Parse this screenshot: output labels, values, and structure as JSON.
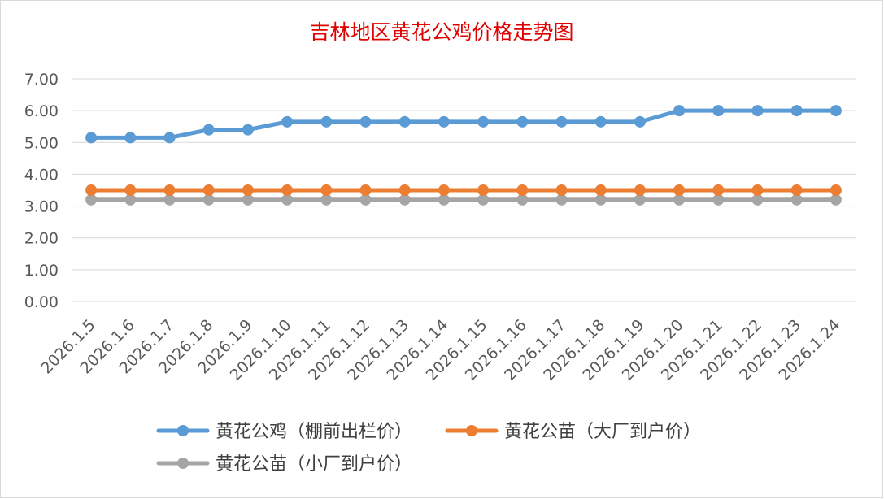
{
  "chart_data": {
    "type": "line",
    "title": "吉林地区黄花公鸡价格走势图",
    "xlabel": "",
    "ylabel": "",
    "x": [
      "2026.1.5",
      "2026.1.6",
      "2026.1.7",
      "2026.1.8",
      "2026.1.9",
      "2026.1.10",
      "2026.1.11",
      "2026.1.12",
      "2026.1.13",
      "2026.1.14",
      "2026.1.15",
      "2026.1.16",
      "2026.1.17",
      "2026.1.18",
      "2026.1.19",
      "2026.1.20",
      "2026.1.21",
      "2026.1.22",
      "2026.1.23",
      "2026.1.24"
    ],
    "ylim": [
      0,
      7
    ],
    "yticks": [
      "0.00",
      "1.00",
      "2.00",
      "3.00",
      "4.00",
      "5.00",
      "6.00",
      "7.00"
    ],
    "grid": true,
    "legend_position": "bottom",
    "series": [
      {
        "name": "黄花公鸡（棚前出栏价）",
        "color": "#5B9BD5",
        "values": [
          5.15,
          5.15,
          5.15,
          5.4,
          5.4,
          5.65,
          5.65,
          5.65,
          5.65,
          5.65,
          5.65,
          5.65,
          5.65,
          5.65,
          5.65,
          6.0,
          6.0,
          6.0,
          6.0,
          6.0
        ]
      },
      {
        "name": "黄花公苗（大厂到户价）",
        "color": "#ED7D31",
        "values": [
          3.5,
          3.5,
          3.5,
          3.5,
          3.5,
          3.5,
          3.5,
          3.5,
          3.5,
          3.5,
          3.5,
          3.5,
          3.5,
          3.5,
          3.5,
          3.5,
          3.5,
          3.5,
          3.5,
          3.5
        ]
      },
      {
        "name": "黄花公苗（小厂到户价）",
        "color": "#A5A5A5",
        "values": [
          3.2,
          3.2,
          3.2,
          3.2,
          3.2,
          3.2,
          3.2,
          3.2,
          3.2,
          3.2,
          3.2,
          3.2,
          3.2,
          3.2,
          3.2,
          3.2,
          3.2,
          3.2,
          3.2,
          3.2
        ]
      }
    ],
    "title_color": "#E00000"
  }
}
